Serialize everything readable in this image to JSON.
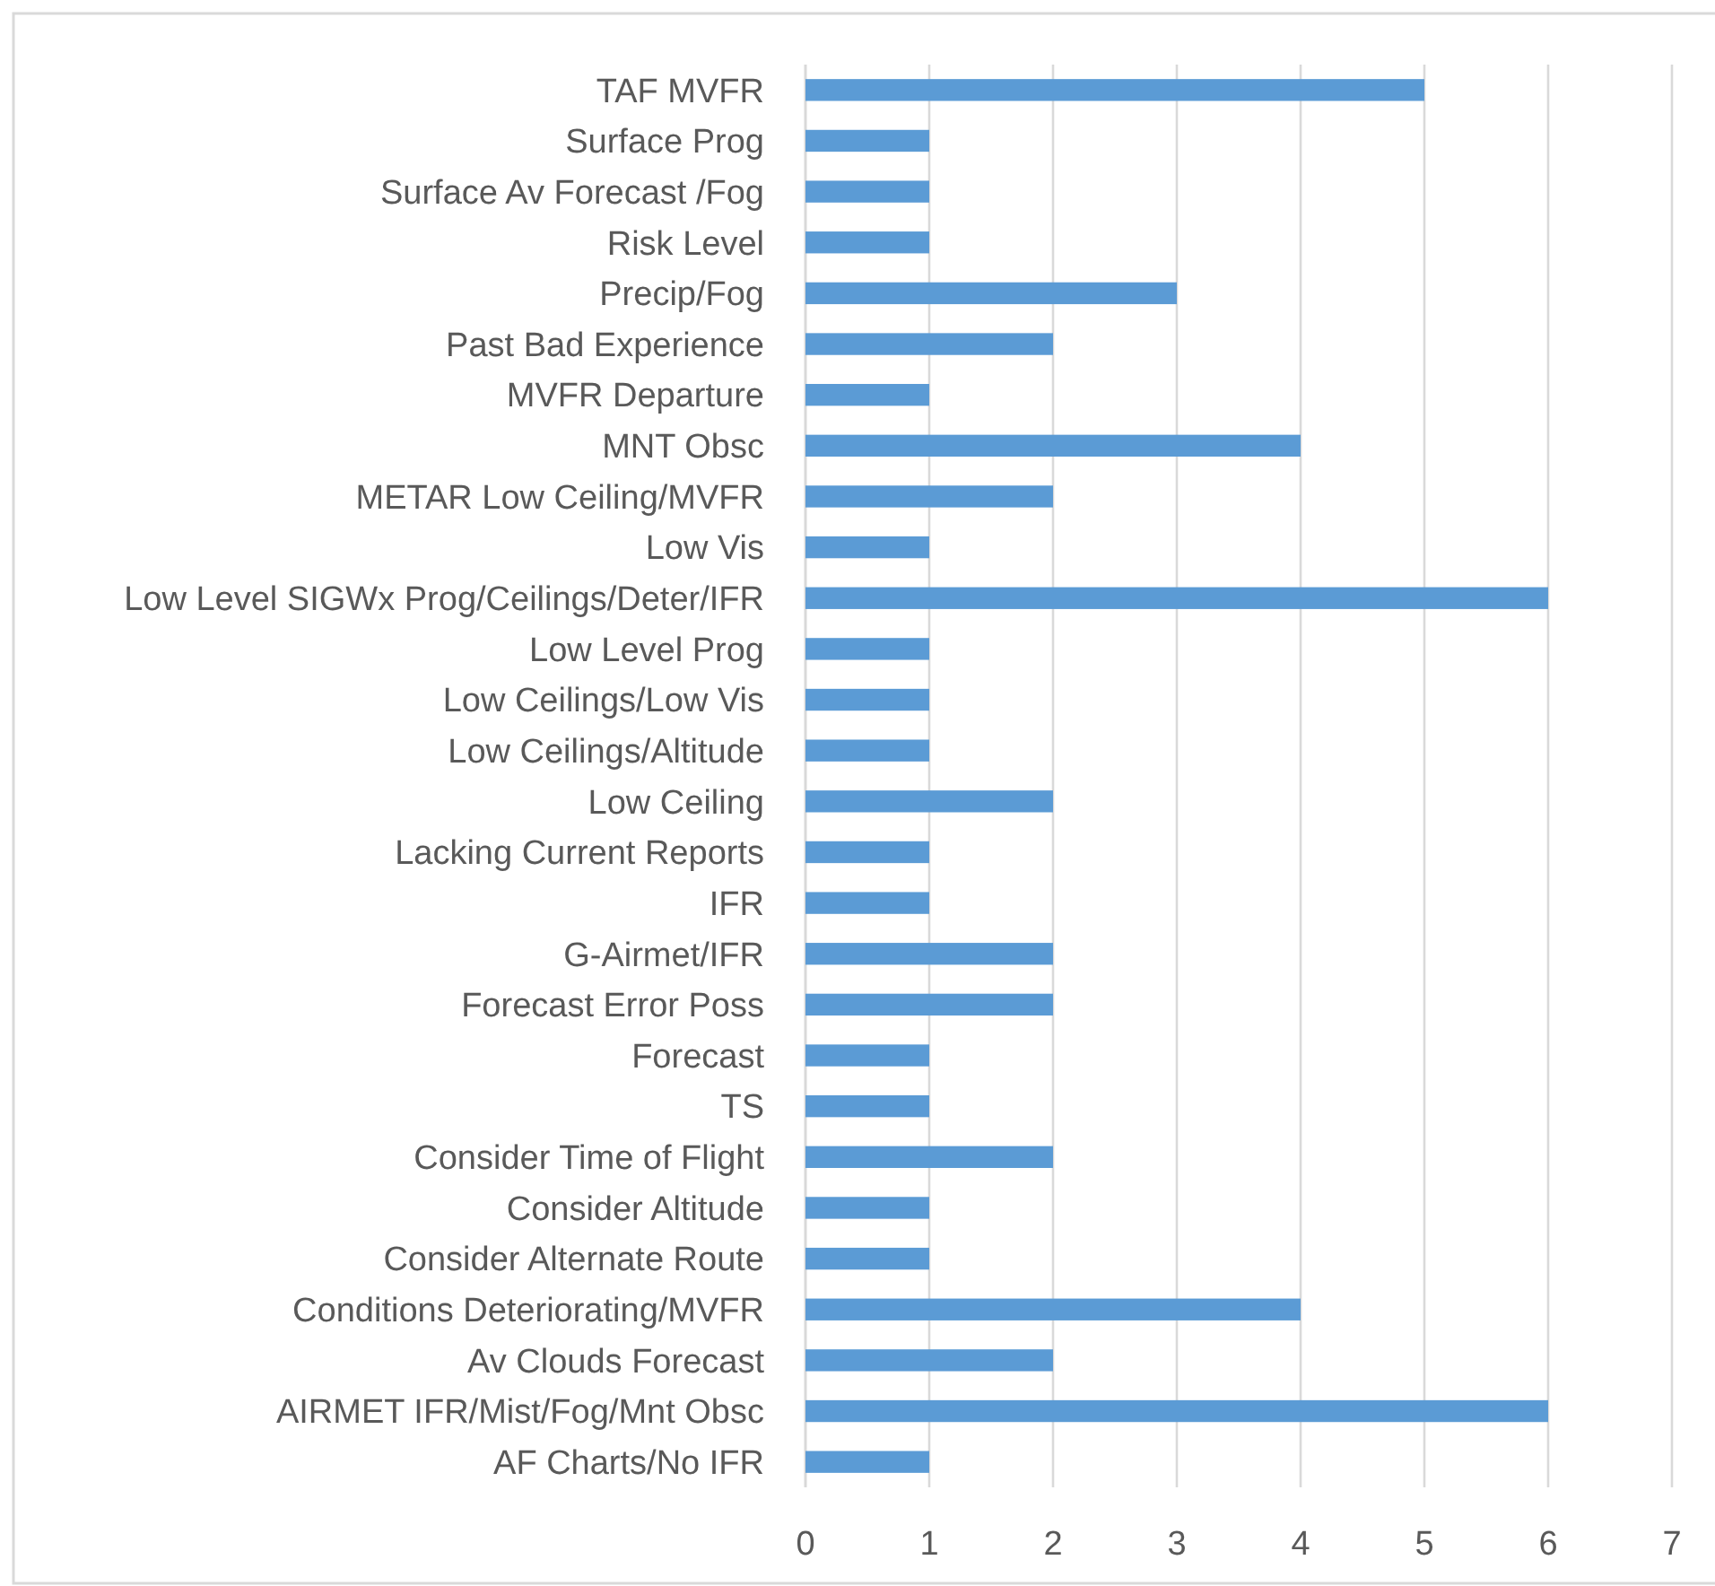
{
  "chart_data": {
    "type": "bar",
    "orientation": "horizontal",
    "categories": [
      "TAF MVFR",
      "Surface Prog",
      "Surface Av Forecast /Fog",
      "Risk Level",
      "Precip/Fog",
      "Past Bad Experience",
      "MVFR Departure",
      "MNT Obsc",
      "METAR Low Ceiling/MVFR",
      "Low Vis",
      "Low Level SIGWx Prog/Ceilings/Deter/IFR",
      "Low Level Prog",
      "Low Ceilings/Low Vis",
      "Low Ceilings/Altitude",
      "Low Ceiling",
      "Lacking Current Reports",
      "IFR",
      "G-Airmet/IFR",
      "Forecast Error Poss",
      "Forecast",
      "TS",
      "Consider Time of Flight",
      "Consider Altitude",
      "Consider Alternate Route",
      "Conditions Deteriorating/MVFR",
      "Av Clouds Forecast",
      "AIRMET IFR/Mist/Fog/Mnt Obsc",
      "AF Charts/No IFR"
    ],
    "values": [
      5,
      1,
      1,
      1,
      3,
      2,
      1,
      4,
      2,
      1,
      6,
      1,
      1,
      1,
      2,
      1,
      1,
      2,
      2,
      1,
      1,
      2,
      1,
      1,
      4,
      2,
      6,
      1
    ],
    "color": "#5b9bd5",
    "xlim": [
      0,
      7
    ],
    "xticks": [
      0,
      1,
      2,
      3,
      4,
      5,
      6,
      7
    ],
    "grid": "x"
  }
}
